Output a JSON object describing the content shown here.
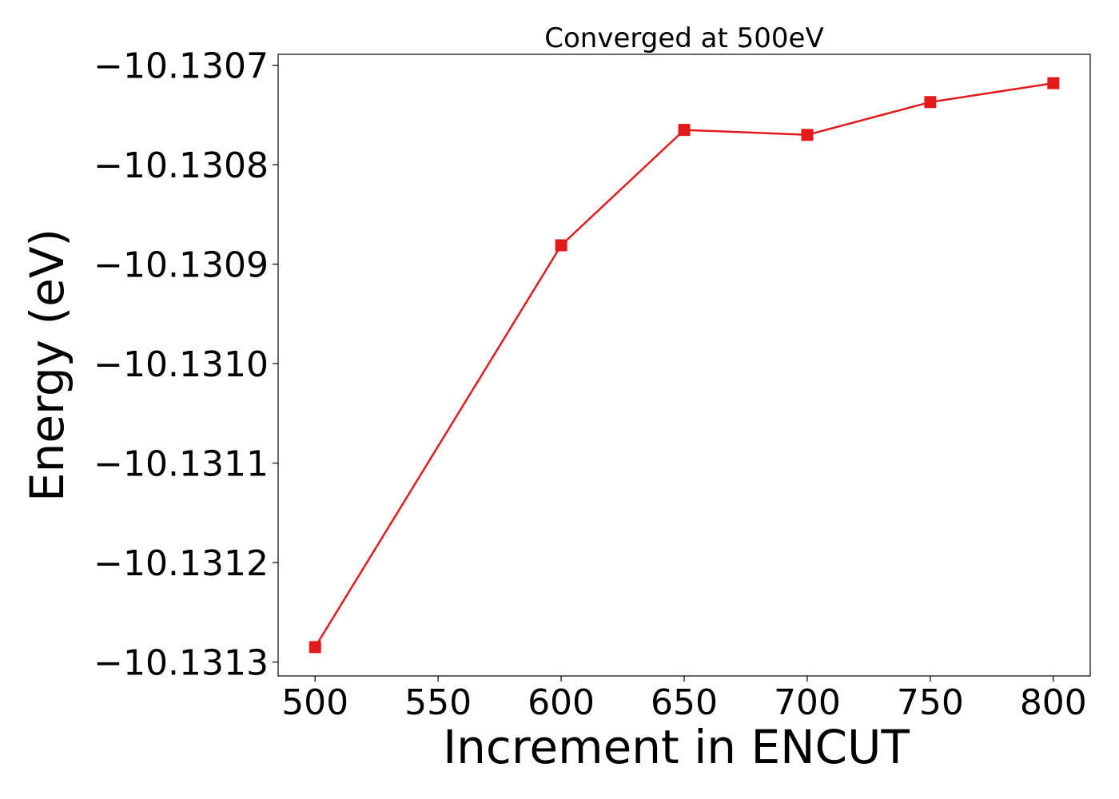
{
  "chart_data": {
    "type": "line",
    "title": "Converged at 500eV",
    "xlabel": "Increment in ENCUT",
    "ylabel": "Energy (eV)",
    "x": [
      500,
      600,
      650,
      700,
      750,
      800
    ],
    "series": [
      {
        "values": [
          -10.131285,
          -10.130881,
          -10.130765,
          -10.13077,
          -10.130737,
          -10.130718
        ],
        "color": "#e31a1c",
        "marker": "square"
      }
    ],
    "xticks": [
      500,
      550,
      600,
      650,
      700,
      750,
      800
    ],
    "xtick_labels": [
      "500",
      "550",
      "600",
      "650",
      "700",
      "750",
      "800"
    ],
    "yticks": [
      -10.1313,
      -10.1312,
      -10.1311,
      -10.131,
      -10.1309,
      -10.1308,
      -10.1307
    ],
    "ytick_labels": [
      "−10.1313",
      "−10.1312",
      "−10.1311",
      "−10.1310",
      "−10.1309",
      "−10.1308",
      "−10.1307"
    ],
    "xlim": [
      485,
      815
    ],
    "ylim": [
      -10.131314,
      -10.130689
    ],
    "grid": false,
    "legend": false
  }
}
